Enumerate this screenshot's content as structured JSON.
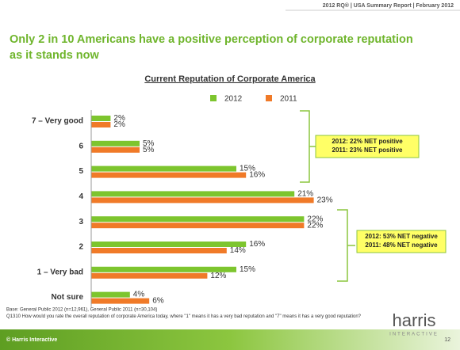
{
  "header": {
    "text": "2012 RQ® | USA Summary Report | February 2012"
  },
  "title": "Only 2 in 10 Americans have a positive perception of corporate reputation as it stands now",
  "chart_data": {
    "type": "bar",
    "orientation": "horizontal",
    "title": "Current Reputation of Corporate America",
    "categories": [
      "7 – Very good",
      "6",
      "5",
      "4",
      "3",
      "2",
      "1 – Very bad",
      "Not sure"
    ],
    "series": [
      {
        "name": "2012",
        "color": "#7dc52e",
        "values": [
          2,
          5,
          15,
          21,
          22,
          16,
          15,
          4
        ],
        "value_labels": [
          "2%",
          "5%",
          "15%",
          "21%",
          "22%",
          "16%",
          "15%",
          "4%"
        ]
      },
      {
        "name": "2011",
        "color": "#f07a28",
        "values": [
          2,
          5,
          16,
          23,
          22,
          14,
          12,
          6
        ],
        "value_labels": [
          "2%",
          "5%",
          "16%",
          "23%",
          "22%",
          "14%",
          "12%",
          "6%"
        ]
      }
    ],
    "annotations": [
      {
        "lines": [
          "2012: 22% NET positive",
          "2011: 23% NET positive"
        ]
      },
      {
        "lines": [
          "2012: 53% NET negative",
          "2011: 48% NET negative"
        ]
      }
    ]
  },
  "footnotes": [
    "Base: General Public 2012 (n=12,961), General Public 2011 (n=30,104)",
    "Q1310 How would you rate the overall reputation of corporate America today,  where \"1\" means it has a very bad reputation and \"7\" means it has a very good reputation?"
  ],
  "footer": {
    "copyright": "© Harris Interactive",
    "page": "12",
    "logo": "harris",
    "logo_sub": "INTERACTIVE"
  }
}
